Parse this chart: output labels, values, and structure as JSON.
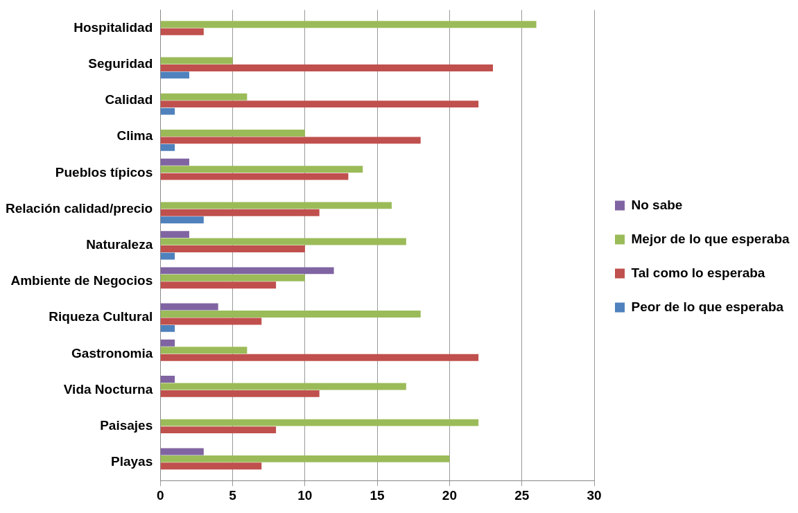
{
  "chart_data": {
    "type": "bar",
    "orientation": "horizontal",
    "categories": [
      "Hospitalidad",
      "Seguridad",
      "Calidad",
      "Clima",
      "Pueblos típicos",
      "Relación calidad/precio",
      "Naturaleza",
      "Ambiente de Negocios",
      "Riqueza Cultural",
      "Gastronomia",
      "Vida Nocturna",
      "Paisajes",
      "Playas"
    ],
    "series": [
      {
        "name": "No sabe",
        "color": "#8064a2",
        "values": [
          0,
          0,
          0,
          0,
          2,
          0,
          2,
          12,
          4,
          1,
          1,
          0,
          3
        ]
      },
      {
        "name": "Mejor de lo que esperaba",
        "color": "#9bbb59",
        "values": [
          26,
          5,
          6,
          10,
          14,
          16,
          17,
          10,
          18,
          6,
          17,
          22,
          20
        ]
      },
      {
        "name": "Tal como lo esperaba",
        "color": "#c0504d",
        "values": [
          3,
          23,
          22,
          18,
          13,
          11,
          10,
          8,
          7,
          22,
          11,
          8,
          7
        ]
      },
      {
        "name": "Peor de lo que esperaba",
        "color": "#4f81bd",
        "values": [
          0,
          2,
          1,
          1,
          0,
          3,
          1,
          0,
          1,
          0,
          0,
          0,
          0
        ]
      }
    ],
    "xlim": [
      0,
      30
    ],
    "xticks": [
      0,
      5,
      10,
      15,
      20,
      25,
      30
    ],
    "grid": "x",
    "legend": "right"
  }
}
